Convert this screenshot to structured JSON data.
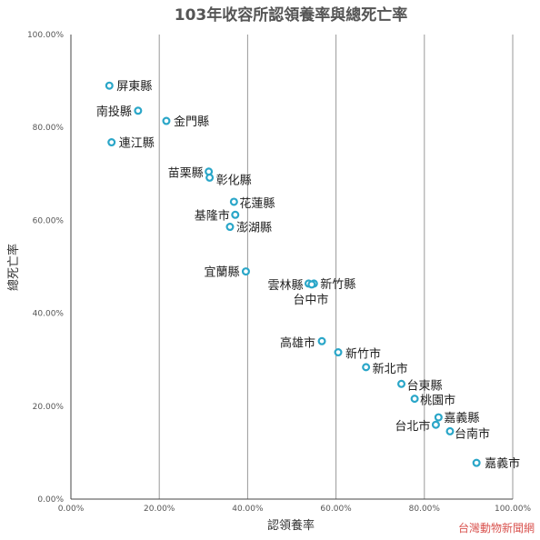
{
  "chart_data": {
    "type": "scatter",
    "title": "103年收容所認領養率與總死亡率",
    "xlabel": "認領養率",
    "ylabel": "總死亡率",
    "xlim": [
      0,
      100
    ],
    "ylim": [
      0,
      100
    ],
    "x_ticks": [
      "0.00%",
      "20.00%",
      "40.00%",
      "60.00%",
      "80.00%",
      "100.00%"
    ],
    "y_ticks": [
      "0.00%",
      "20.00%",
      "40.00%",
      "60.00%",
      "80.00%",
      "100.00%"
    ],
    "grid": "vertical",
    "marker_color": "#2aa6c8",
    "points": [
      {
        "label": "屏東縣",
        "x": 8.7,
        "y": 89.0
      },
      {
        "label": "南投縣",
        "x": 15.2,
        "y": 83.6
      },
      {
        "label": "金門縣",
        "x": 21.6,
        "y": 81.4
      },
      {
        "label": "連江縣",
        "x": 9.2,
        "y": 76.8
      },
      {
        "label": "苗栗縣",
        "x": 31.2,
        "y": 70.5
      },
      {
        "label": "彰化縣",
        "x": 31.4,
        "y": 69.2
      },
      {
        "label": "花蓮縣",
        "x": 36.9,
        "y": 64.0
      },
      {
        "label": "基隆市",
        "x": 37.2,
        "y": 61.2
      },
      {
        "label": "澎湖縣",
        "x": 36.0,
        "y": 58.6
      },
      {
        "label": "宜蘭縣",
        "x": 39.6,
        "y": 49.0
      },
      {
        "label": "雲林縣",
        "x": 53.8,
        "y": 46.4
      },
      {
        "label": "新竹縣",
        "x": 55.0,
        "y": 46.4
      },
      {
        "label": "台中市",
        "x": 54.5,
        "y": 46.2
      },
      {
        "label": "高雄市",
        "x": 56.8,
        "y": 34.0
      },
      {
        "label": "新竹市",
        "x": 60.5,
        "y": 31.6
      },
      {
        "label": "新北市",
        "x": 66.8,
        "y": 28.4
      },
      {
        "label": "台東縣",
        "x": 74.8,
        "y": 24.8
      },
      {
        "label": "桃園市",
        "x": 77.8,
        "y": 21.6
      },
      {
        "label": "嘉義縣",
        "x": 83.2,
        "y": 17.6
      },
      {
        "label": "台北市",
        "x": 82.6,
        "y": 16.0
      },
      {
        "label": "台南市",
        "x": 85.8,
        "y": 14.6
      },
      {
        "label": "嘉義市",
        "x": 91.8,
        "y": 7.8
      }
    ]
  },
  "watermark": "台灣動物新聞網"
}
